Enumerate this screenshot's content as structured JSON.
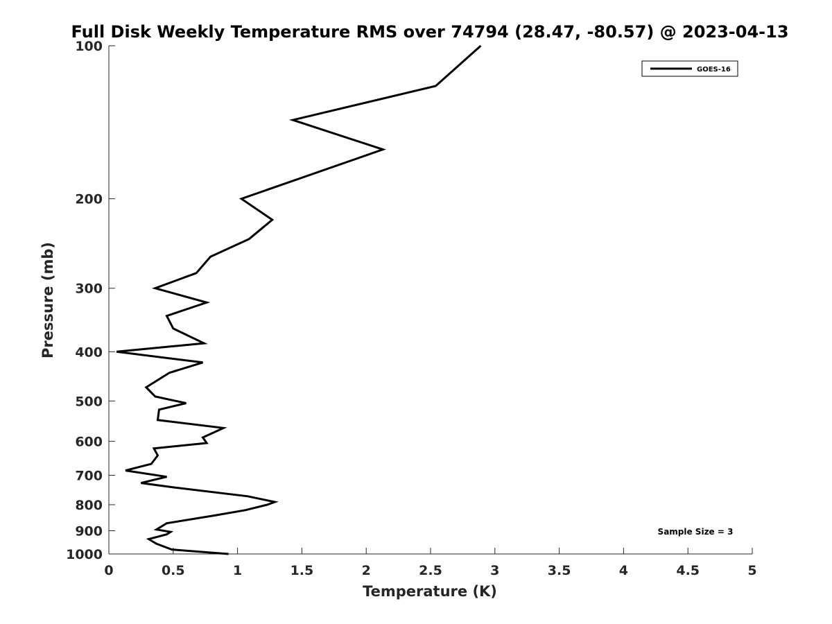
{
  "chart_data": {
    "type": "line",
    "title": "Full Disk Weekly Temperature RMS over 74794 (28.47, -80.57) @ 2023-04-13",
    "xlabel": "Temperature (K)",
    "ylabel": "Pressure (mb)",
    "xlim": [
      0,
      5
    ],
    "ylim": [
      100,
      1000
    ],
    "y_scale": "log",
    "y_reversed": true,
    "x_ticks": [
      "0",
      "0.5",
      "1",
      "1.5",
      "2",
      "2.5",
      "3",
      "3.5",
      "4",
      "4.5",
      "5"
    ],
    "y_ticks": [
      "100",
      "200",
      "300",
      "400",
      "500",
      "600",
      "700",
      "800",
      "900",
      "1000"
    ],
    "legend_position": "top-right",
    "grid": false,
    "series": [
      {
        "name": "GOES-16",
        "color": "#000000",
        "x": [
          2.89,
          2.54,
          1.43,
          2.13,
          1.03,
          1.27,
          1.09,
          0.79,
          0.68,
          0.36,
          0.76,
          0.45,
          0.5,
          0.74,
          0.06,
          0.73,
          0.47,
          0.29,
          0.36,
          0.6,
          0.39,
          0.38,
          0.89,
          0.73,
          0.76,
          0.35,
          0.38,
          0.33,
          0.13,
          0.45,
          0.25,
          0.51,
          1.08,
          1.29,
          1.23,
          1.06,
          0.82,
          0.45,
          0.37,
          0.48,
          0.45,
          0.31,
          0.37,
          0.49,
          0.93
        ],
        "y": [
          100,
          120,
          140,
          160,
          200,
          220,
          240,
          260,
          280,
          300,
          320,
          340,
          360,
          385,
          400,
          420,
          440,
          470,
          490,
          505,
          520,
          545,
          565,
          590,
          605,
          620,
          640,
          665,
          685,
          705,
          725,
          740,
          770,
          790,
          800,
          820,
          840,
          870,
          895,
          905,
          915,
          935,
          955,
          980,
          1000
        ]
      }
    ],
    "annotations": [
      "Sample Size = 3"
    ]
  }
}
